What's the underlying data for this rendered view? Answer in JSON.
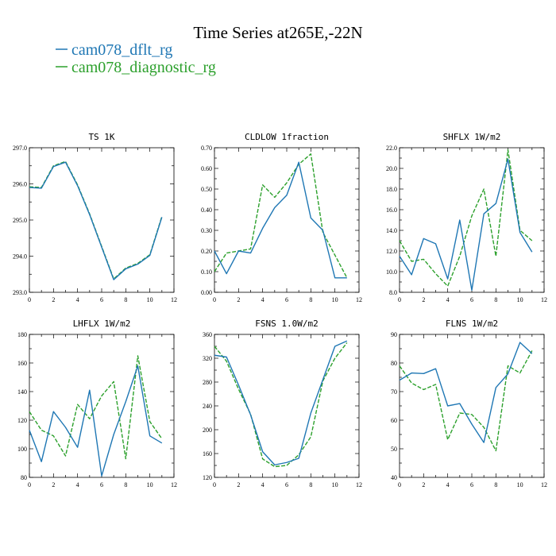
{
  "title": "Time Series at265E,-22N",
  "legend": [
    {
      "name": "cam078_dflt_rg",
      "color": "#1f77b4",
      "dash": "solid"
    },
    {
      "name": "cam078_diagnostic_rg",
      "color": "#2ca02c",
      "dash": "dashed"
    }
  ],
  "chart_data": [
    {
      "type": "line",
      "title": "TS   1K",
      "xlim": [
        0,
        12
      ],
      "ylim": [
        293,
        297
      ],
      "x_ticks": [
        0,
        2,
        4,
        6,
        8,
        10,
        12
      ],
      "y_ticks": [
        "293.0",
        "294.0",
        "295.0",
        "296.0",
        "297.0"
      ],
      "x": [
        0,
        1,
        2,
        3,
        4,
        5,
        6,
        7,
        8,
        9,
        10,
        11
      ],
      "series": [
        {
          "name": "cam078_dflt_rg",
          "values": [
            295.9,
            295.88,
            296.48,
            296.6,
            295.95,
            295.15,
            294.25,
            293.35,
            293.65,
            293.78,
            294.02,
            295.08
          ]
        },
        {
          "name": "cam078_diagnostic_rg",
          "values": [
            295.92,
            295.9,
            296.5,
            296.62,
            295.97,
            295.17,
            294.27,
            293.37,
            293.67,
            293.8,
            294.04,
            295.1
          ]
        }
      ]
    },
    {
      "type": "line",
      "title": "CLDLOW   1fraction",
      "xlim": [
        0,
        12
      ],
      "ylim": [
        0,
        0.7
      ],
      "x_ticks": [
        0,
        2,
        4,
        6,
        8,
        10,
        12
      ],
      "y_ticks": [
        "0.00",
        "0.10",
        "0.20",
        "0.30",
        "0.40",
        "0.50",
        "0.60",
        "0.70"
      ],
      "x": [
        0,
        1,
        2,
        3,
        4,
        5,
        6,
        7,
        8,
        9,
        10,
        11
      ],
      "series": [
        {
          "name": "cam078_dflt_rg",
          "values": [
            0.2,
            0.09,
            0.2,
            0.19,
            0.31,
            0.41,
            0.47,
            0.63,
            0.36,
            0.3,
            0.07,
            0.07
          ]
        },
        {
          "name": "cam078_diagnostic_rg",
          "values": [
            0.1,
            0.19,
            0.2,
            0.21,
            0.52,
            0.46,
            0.53,
            0.62,
            0.67,
            0.29,
            0.18,
            0.07
          ]
        }
      ]
    },
    {
      "type": "line",
      "title": "SHFLX   1W/m2",
      "xlim": [
        0,
        12
      ],
      "ylim": [
        8,
        22
      ],
      "x_ticks": [
        0,
        2,
        4,
        6,
        8,
        10,
        12
      ],
      "y_ticks": [
        "8.0",
        "10.0",
        "12.0",
        "14.0",
        "16.0",
        "18.0",
        "20.0",
        "22.0"
      ],
      "x": [
        0,
        1,
        2,
        3,
        4,
        5,
        6,
        7,
        8,
        9,
        10,
        11
      ],
      "series": [
        {
          "name": "cam078_dflt_rg",
          "values": [
            11.5,
            9.7,
            13.2,
            12.7,
            9.3,
            15.0,
            8.2,
            15.6,
            16.6,
            20.9,
            13.8,
            11.9
          ]
        },
        {
          "name": "cam078_diagnostic_rg",
          "values": [
            13.0,
            11.0,
            11.2,
            9.8,
            8.6,
            11.5,
            15.4,
            18.0,
            11.5,
            21.8,
            14.0,
            13.0
          ]
        }
      ]
    },
    {
      "type": "line",
      "title": "LHFLX   1W/m2",
      "xlim": [
        0,
        12
      ],
      "ylim": [
        80,
        180
      ],
      "x_ticks": [
        0,
        2,
        4,
        6,
        8,
        10,
        12
      ],
      "y_ticks": [
        "80",
        "100",
        "120",
        "140",
        "160",
        "180"
      ],
      "x": [
        0,
        1,
        2,
        3,
        4,
        5,
        6,
        7,
        8,
        9,
        10,
        11
      ],
      "series": [
        {
          "name": "cam078_dflt_rg",
          "values": [
            113,
            91,
            126,
            115,
            101,
            141,
            81,
            110,
            133,
            158,
            109,
            104
          ]
        },
        {
          "name": "cam078_diagnostic_rg",
          "values": [
            126,
            113,
            109,
            95,
            131,
            121,
            137,
            147,
            93,
            165,
            119,
            107
          ]
        }
      ]
    },
    {
      "type": "line",
      "title": "FSNS   1.0W/m2",
      "xlim": [
        0,
        12
      ],
      "ylim": [
        120,
        360
      ],
      "x_ticks": [
        0,
        2,
        4,
        6,
        8,
        10,
        12
      ],
      "y_ticks": [
        "120",
        "160",
        "200",
        "240",
        "280",
        "320",
        "360"
      ],
      "x": [
        0,
        1,
        2,
        3,
        4,
        5,
        6,
        7,
        8,
        9,
        10,
        11
      ],
      "series": [
        {
          "name": "cam078_dflt_rg",
          "values": [
            325,
            322,
            275,
            225,
            163,
            141,
            145,
            152,
            228,
            284,
            340,
            349
          ]
        },
        {
          "name": "cam078_diagnostic_rg",
          "values": [
            340,
            315,
            268,
            226,
            151,
            138,
            140,
            158,
            188,
            282,
            320,
            346
          ]
        }
      ]
    },
    {
      "type": "line",
      "title": "FLNS   1W/m2",
      "xlim": [
        0,
        12
      ],
      "ylim": [
        40,
        90
      ],
      "x_ticks": [
        0,
        2,
        4,
        6,
        8,
        10,
        12
      ],
      "y_ticks": [
        "40",
        "50",
        "60",
        "70",
        "80",
        "90"
      ],
      "x": [
        0,
        1,
        2,
        3,
        4,
        5,
        6,
        7,
        8,
        9,
        10,
        11
      ],
      "series": [
        {
          "name": "cam078_dflt_rg",
          "values": [
            74,
            76.5,
            76.3,
            78,
            65,
            65.8,
            58.6,
            52.2,
            71.4,
            76.2,
            87.2,
            83.3
          ]
        },
        {
          "name": "cam078_diagnostic_rg",
          "values": [
            79,
            73,
            70.7,
            72.5,
            53.2,
            62.5,
            62,
            57.5,
            49.3,
            79,
            76.5,
            84.3
          ]
        }
      ]
    }
  ]
}
